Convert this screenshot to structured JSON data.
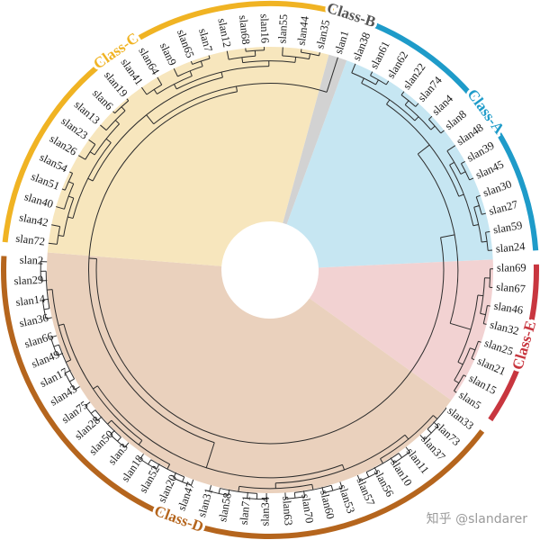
{
  "tree": {
    "classes": [
      {
        "name": "Class-A",
        "color": "#1e9bc9",
        "sector_fill": "#c6e6f2",
        "leaves": [
          "slan38",
          "slan61",
          "slan62",
          "slan22",
          "slan74",
          "slan4",
          "slan8",
          "slan48",
          "slan39",
          "slan45",
          "slan30",
          "slan27",
          "slan59",
          "slan24"
        ]
      },
      {
        "name": "Class-E",
        "color": "#c8363f",
        "sector_fill": "#f2d2d2",
        "leaves": [
          "slan69",
          "slan67",
          "slan46",
          "slan32",
          "slan25",
          "slan21",
          "slan15",
          "slan5"
        ]
      },
      {
        "name": "Class-D",
        "color": "#b5651d",
        "sector_fill": "#ead1bd",
        "leaves": [
          "slan33",
          "slan73",
          "slan37",
          "slan11",
          "slan10",
          "slan56",
          "slan57",
          "slan53",
          "slan60",
          "slan70",
          "slan63",
          "slan34",
          "slan71",
          "slan58",
          "slan31",
          "slan47",
          "slan20",
          "slan52",
          "slan18",
          "slan3",
          "slan50",
          "slan28",
          "slan75",
          "slan43",
          "slan17",
          "slan49",
          "slan66",
          "slan36",
          "slan14",
          "slan29",
          "slan2"
        ]
      },
      {
        "name": "Class-C",
        "color": "#f0b323",
        "sector_fill": "#f7e6bd",
        "leaves": [
          "slan72",
          "slan42",
          "slan40",
          "slan51",
          "slan54",
          "slan26",
          "slan23",
          "slan13",
          "slan6",
          "slan19",
          "slan41",
          "slan64",
          "slan9",
          "slan65",
          "slan7",
          "slan12",
          "slan68",
          "slan16",
          "slan55",
          "slan44",
          "slan35"
        ]
      },
      {
        "name": "Class-B",
        "color": "#555555",
        "sector_fill": "#d2d2d2",
        "leaves": [
          "slan1"
        ]
      }
    ]
  },
  "watermark": "知乎 @slandarer"
}
